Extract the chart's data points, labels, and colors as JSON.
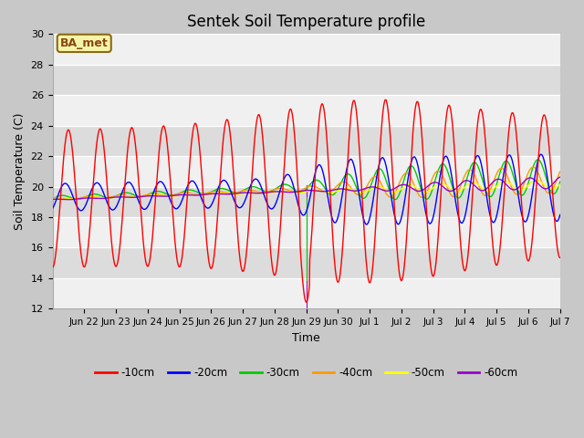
{
  "title": "Sentek Soil Temperature profile",
  "xlabel": "Time",
  "ylabel": "Soil Temperature (C)",
  "ylim": [
    12,
    30
  ],
  "yticks": [
    12,
    14,
    16,
    18,
    20,
    22,
    24,
    26,
    28,
    30
  ],
  "annotation": "BA_met",
  "plot_bg_color": "#e8e8e8",
  "fig_bg_color": "#c8c8c8",
  "line_colors": {
    "-10cm": "#ff0000",
    "-20cm": "#0000ff",
    "-30cm": "#00cc00",
    "-40cm": "#ff9900",
    "-50cm": "#ffff00",
    "-60cm": "#9900cc"
  },
  "spike_color": "#9900cc",
  "legend_colors": [
    "#ff0000",
    "#0000ff",
    "#00cc00",
    "#ff9900",
    "#ffff00",
    "#9900cc"
  ],
  "legend_labels": [
    "-10cm",
    "-20cm",
    "-30cm",
    "-40cm",
    "-50cm",
    "-60cm"
  ],
  "tick_labels": [
    "Jun 22",
    "Jun 23",
    "Jun 24",
    "Jun 25",
    "Jun 26",
    "Jun 27",
    "Jun 28",
    "Jun 29",
    "Jun 30",
    "Jul 1",
    "Jul 2",
    "Jul 3",
    "Jul 4",
    "Jul 5",
    "Jul 6",
    "Jul 7"
  ],
  "figsize": [
    6.4,
    4.8
  ],
  "dpi": 100
}
